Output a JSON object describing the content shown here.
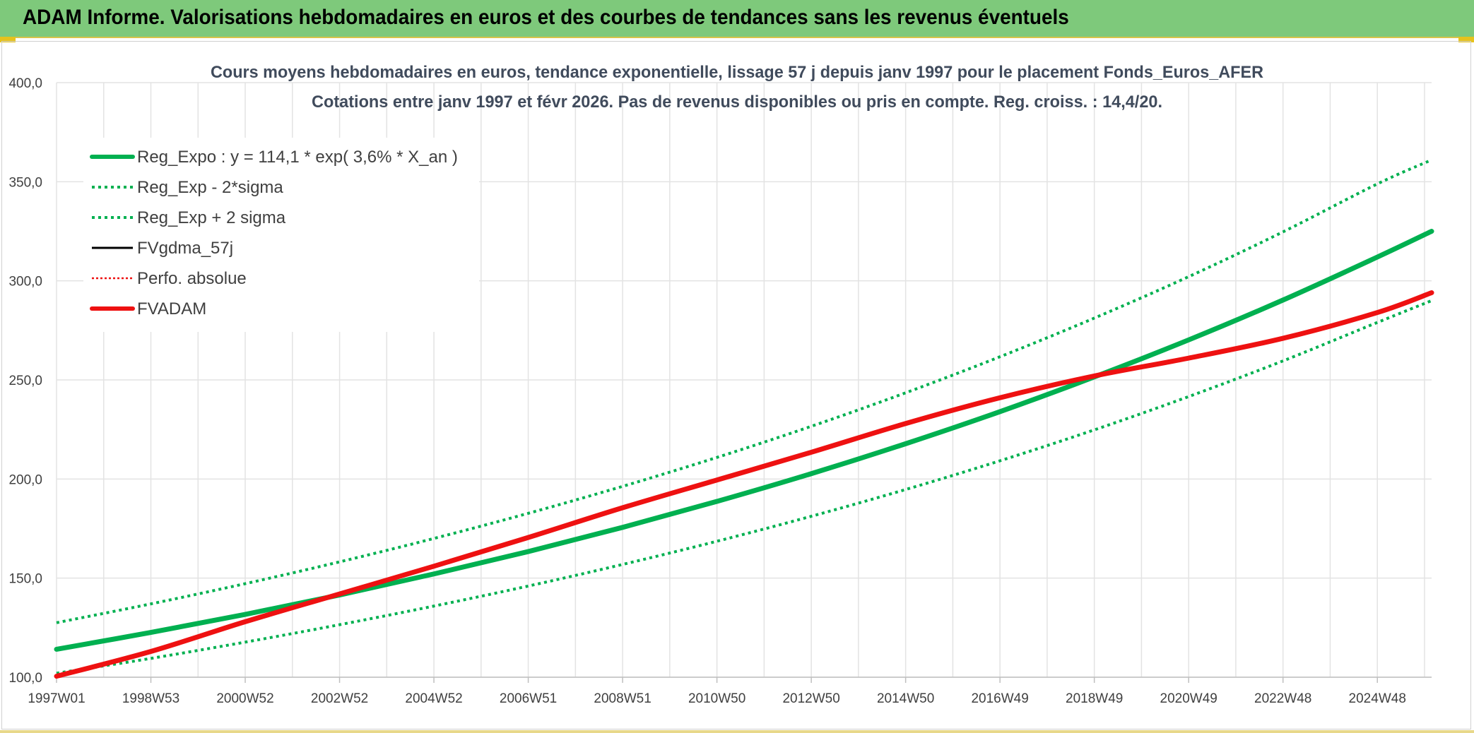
{
  "banner": {
    "title": "ADAM Informe. Valorisations hebdomadaires en euros et des courbes de tendances sans les revenus éventuels"
  },
  "colors": {
    "banner_bg": "#7ec97b",
    "green": "#00b050",
    "red": "#ee1111",
    "black": "#000000",
    "grid": "#e3e3e3",
    "title_text": "#404b5c"
  },
  "chart_data": {
    "type": "line",
    "title": "Cours moyens hebdomadaires en euros, tendance exponentielle, lissage 57 j depuis janv 1997 pour le placement Fonds_Euros_AFER",
    "subtitle": "Cotations entre janv 1997 et févr 2026. Pas de revenus disponibles ou pris en compte. Reg. croiss. : 14,4/20.",
    "xlabel": "",
    "ylabel": "",
    "ylim": [
      100,
      400
    ],
    "yticks": [
      "100,0",
      "150,0",
      "200,0",
      "250,0",
      "300,0",
      "350,0",
      "400,0"
    ],
    "xlim": [
      1997.0,
      2026.15
    ],
    "xticks": [
      {
        "year": 1997.0,
        "label": "1997W01"
      },
      {
        "year": 1999.0,
        "label": "1998W53"
      },
      {
        "year": 2001.0,
        "label": "2000W52"
      },
      {
        "year": 2003.0,
        "label": "2002W52"
      },
      {
        "year": 2005.0,
        "label": "2004W52"
      },
      {
        "year": 2007.0,
        "label": "2006W51"
      },
      {
        "year": 2009.0,
        "label": "2008W51"
      },
      {
        "year": 2011.0,
        "label": "2010W50"
      },
      {
        "year": 2013.0,
        "label": "2012W50"
      },
      {
        "year": 2015.0,
        "label": "2014W50"
      },
      {
        "year": 2017.0,
        "label": "2016W49"
      },
      {
        "year": 2019.0,
        "label": "2018W49"
      },
      {
        "year": 2021.0,
        "label": "2020W49"
      },
      {
        "year": 2023.0,
        "label": "2022W48"
      },
      {
        "year": 2025.0,
        "label": "2024W48"
      }
    ],
    "grid": true,
    "legend_position": "top-left",
    "legend": [
      {
        "label": "Reg_Expo : y = 114,1 * exp( 3,6% *  X_an )",
        "color": "#00b050",
        "style": "solid-thick"
      },
      {
        "label": "Reg_Exp - 2*sigma",
        "color": "#00b050",
        "style": "dotted"
      },
      {
        "label": "Reg_Exp + 2 sigma",
        "color": "#00b050",
        "style": "dotted"
      },
      {
        "label": "FVgdma_57j",
        "color": "#000000",
        "style": "solid-thin"
      },
      {
        "label": "Perfo. absolue",
        "color": "#ee1111",
        "style": "dotted-thin"
      },
      {
        "label": "FVADAM",
        "color": "#ee1111",
        "style": "solid-thick"
      }
    ],
    "series": [
      {
        "name": "Reg_Expo : y = 114,1 * exp( 3,6% *  X_an )",
        "color": "#00b050",
        "style": "solid-thick",
        "x": [
          1997.0,
          1999.0,
          2001.0,
          2003.0,
          2005.0,
          2007.0,
          2009.0,
          2011.0,
          2013.0,
          2015.0,
          2017.0,
          2019.0,
          2021.0,
          2023.0,
          2025.0,
          2026.15
        ],
        "y": [
          114.1,
          122.6,
          131.7,
          141.5,
          152.1,
          163.4,
          175.6,
          188.7,
          202.7,
          217.8,
          234.0,
          251.5,
          270.2,
          290.3,
          312.0,
          325.0
        ]
      },
      {
        "name": "Reg_Exp - 2*sigma",
        "color": "#00b050",
        "style": "dotted",
        "x": [
          1997.0,
          1999.0,
          2001.0,
          2003.0,
          2005.0,
          2007.0,
          2009.0,
          2011.0,
          2013.0,
          2015.0,
          2017.0,
          2019.0,
          2021.0,
          2023.0,
          2025.0,
          2026.15
        ],
        "y": [
          102.0,
          109.5,
          117.7,
          126.5,
          135.9,
          146.0,
          156.9,
          168.6,
          181.2,
          194.7,
          209.2,
          224.8,
          241.6,
          259.6,
          279.0,
          290.0
        ]
      },
      {
        "name": "Reg_Exp + 2 sigma",
        "color": "#00b050",
        "style": "dotted",
        "x": [
          1997.0,
          1999.0,
          2001.0,
          2003.0,
          2005.0,
          2007.0,
          2009.0,
          2011.0,
          2013.0,
          2015.0,
          2017.0,
          2019.0,
          2021.0,
          2023.0,
          2025.0,
          2026.15
        ],
        "y": [
          127.5,
          137.0,
          147.2,
          158.2,
          170.0,
          182.7,
          196.3,
          210.9,
          226.6,
          243.5,
          261.7,
          281.2,
          302.1,
          324.7,
          348.9,
          361.0
        ]
      },
      {
        "name": "FVADAM",
        "color": "#ee1111",
        "style": "solid-thick",
        "x": [
          1997.0,
          1999.0,
          2001.0,
          2003.0,
          2005.0,
          2007.0,
          2009.0,
          2011.0,
          2013.0,
          2015.0,
          2017.0,
          2019.0,
          2021.0,
          2023.0,
          2025.0,
          2026.15
        ],
        "y": [
          100.5,
          113.0,
          128.0,
          142.0,
          156.0,
          170.5,
          185.5,
          199.5,
          213.5,
          228.0,
          241.0,
          252.0,
          261.0,
          271.0,
          284.0,
          294.0
        ]
      }
    ]
  }
}
